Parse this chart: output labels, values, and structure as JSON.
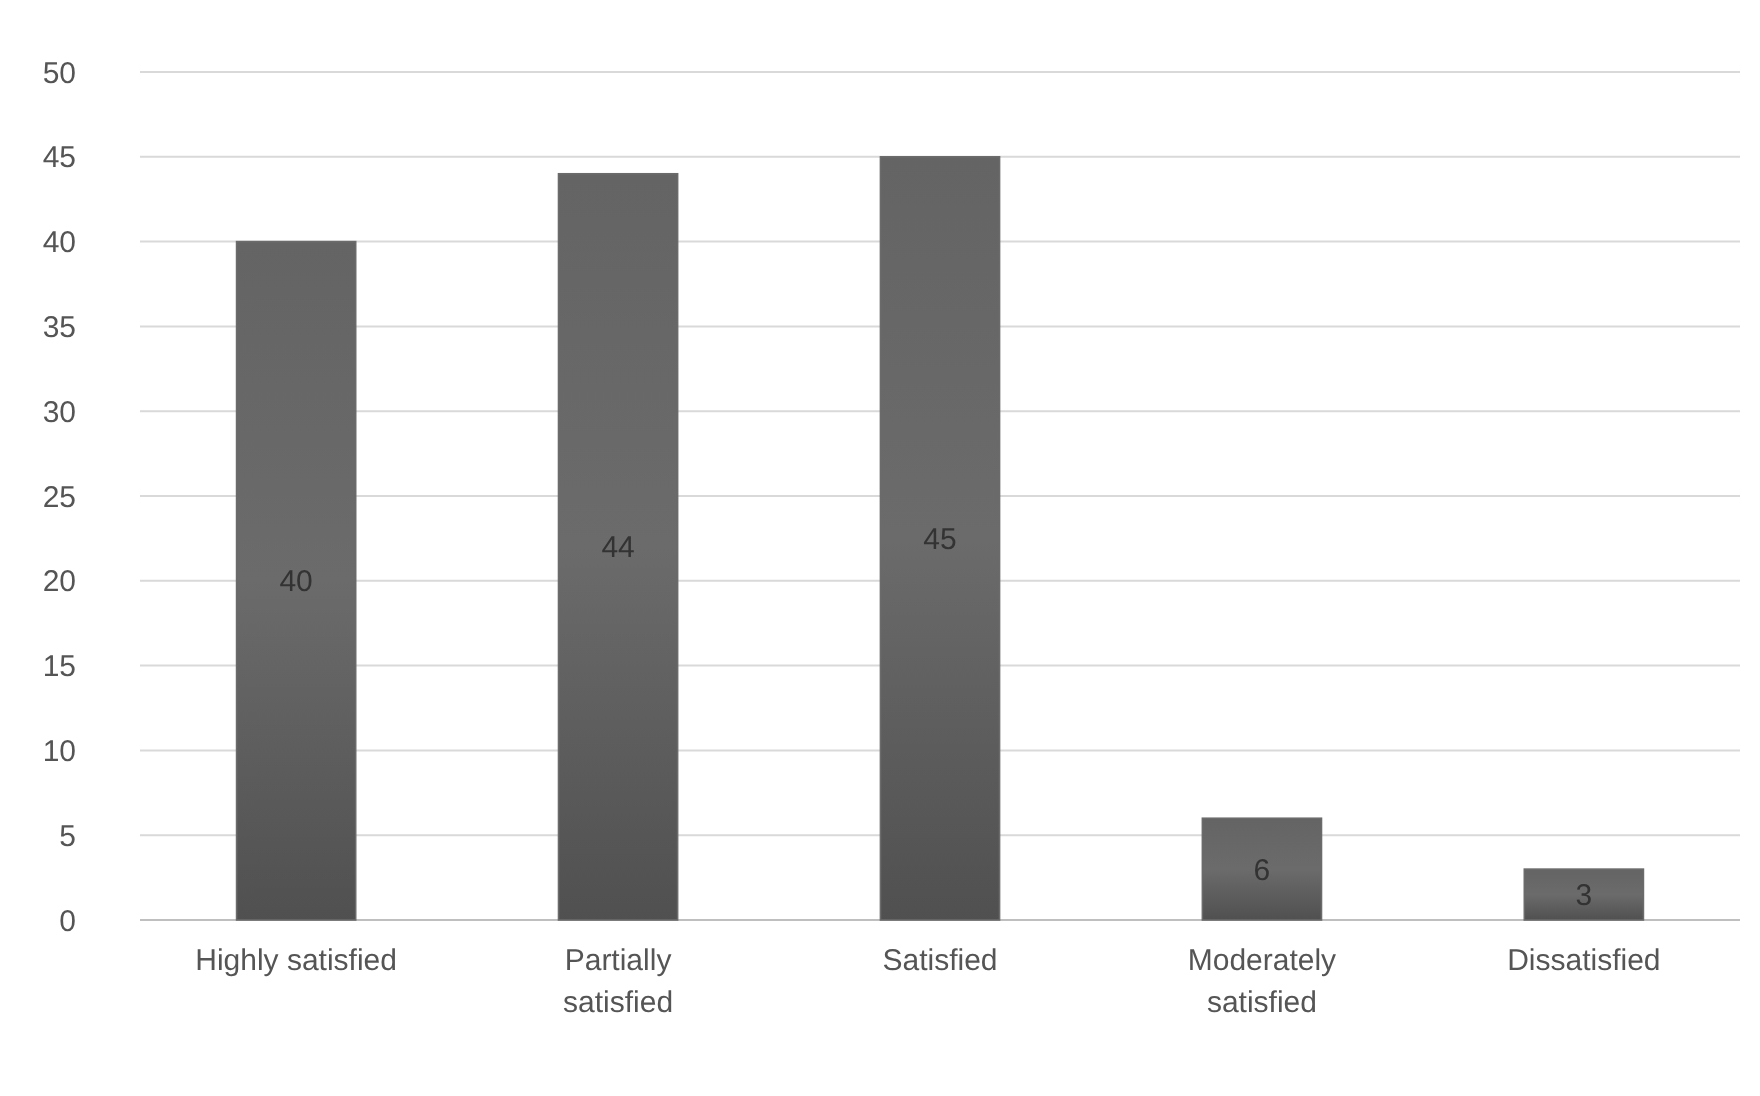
{
  "chart_data": {
    "type": "bar",
    "categories": [
      "Highly satisfied",
      "Partially satisfied",
      "Satisfied",
      "Moderately satisfied",
      "Dissatisfied"
    ],
    "values": [
      40,
      44,
      45,
      6,
      3
    ],
    "color": "#6b6b6b",
    "ylim": [
      0,
      50
    ],
    "yticks": [
      0,
      5,
      10,
      15,
      20,
      25,
      30,
      35,
      40,
      45,
      50
    ],
    "grid": "y",
    "data_labels": true
  }
}
